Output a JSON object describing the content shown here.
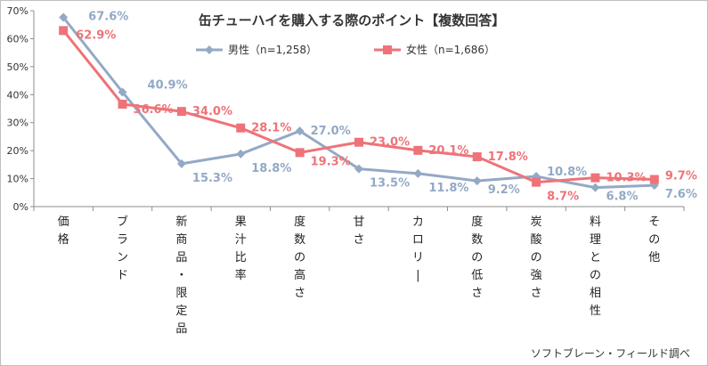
{
  "chart_data": {
    "type": "line",
    "title": "缶チューハイを購入する際のポイント【複数回答】",
    "source": "ソフトブレーン・フィールド調べ",
    "categories": [
      "価格",
      "ブランド",
      "新商品・限定品",
      "果汁比率",
      "度数の高さ",
      "甘さ",
      "カロリー",
      "度数の低さ",
      "炭酸の強さ",
      "料理との相性",
      "その他"
    ],
    "ylim": [
      0,
      70
    ],
    "yticks": [
      "0%",
      "10%",
      "20%",
      "30%",
      "40%",
      "50%",
      "60%",
      "70%"
    ],
    "legend_position": "top",
    "series": [
      {
        "name": "男性（n=1,258）",
        "color": "#93a9c5",
        "marker": "diamond",
        "values": [
          67.6,
          40.9,
          15.3,
          18.8,
          27.0,
          13.5,
          11.8,
          9.2,
          10.8,
          6.8,
          7.6
        ],
        "labels": [
          "67.6%",
          "40.9%",
          "15.3%",
          "18.8%",
          "27.0%",
          "13.5%",
          "11.8%",
          "9.2%",
          "10.8%",
          "6.8%",
          "7.6%"
        ]
      },
      {
        "name": "女性（n=1,686）",
        "color": "#ee7378",
        "marker": "square",
        "values": [
          62.9,
          36.6,
          34.0,
          28.1,
          19.3,
          23.0,
          20.1,
          17.8,
          8.7,
          10.3,
          9.7
        ],
        "labels": [
          "62.9%",
          "36.6%",
          "34.0%",
          "28.1%",
          "19.3%",
          "23.0%",
          "20.1%",
          "17.8%",
          "8.7%",
          "10.3%",
          "9.7%"
        ]
      }
    ]
  }
}
